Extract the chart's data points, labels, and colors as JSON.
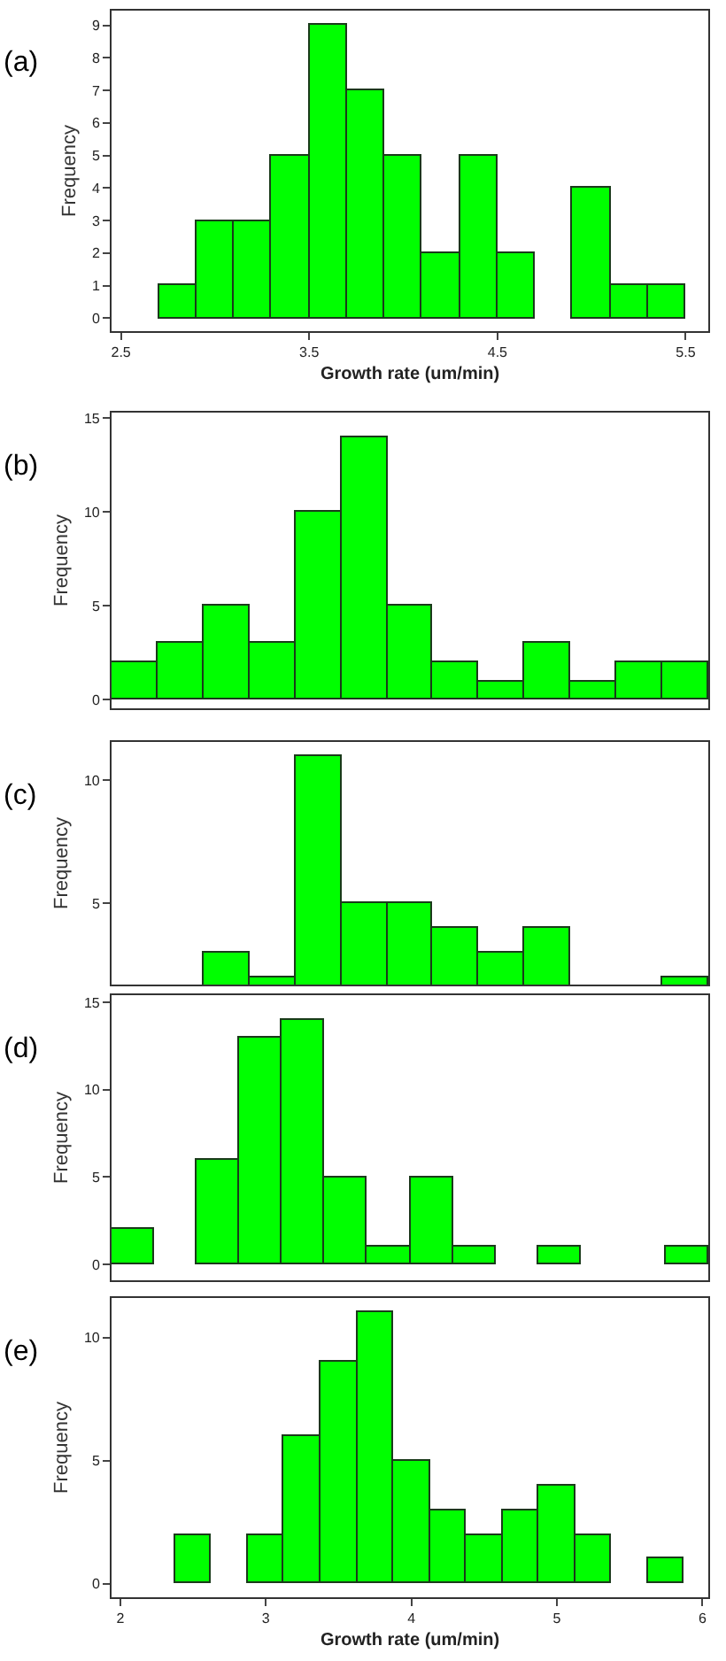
{
  "chart_data": [
    {
      "type": "histogram",
      "xlabel": "Growth rate (um/min)",
      "ylabel": "Frequency",
      "annotations": [
        "(a)"
      ],
      "color": "#00ff00",
      "bins": [
        2.7,
        2.9,
        3.1,
        3.3,
        3.5,
        3.7,
        3.9,
        4.1,
        4.3,
        4.5,
        4.7,
        4.9,
        5.1,
        5.3,
        5.5
      ],
      "values": [
        1,
        3,
        3,
        5,
        9,
        7,
        5,
        2,
        5,
        2,
        0,
        4,
        1,
        1
      ],
      "xlim": [
        2.45,
        5.62
      ],
      "xticks": [
        2.5,
        3.5,
        4.5,
        5.5
      ],
      "ylim": [
        -0.4,
        9.45
      ],
      "yticks": [
        0,
        1,
        2,
        3,
        4,
        5,
        6,
        7,
        8,
        9
      ]
    },
    {
      "type": "bar",
      "ylabel": "Frequency",
      "annotations": [
        "(b)"
      ],
      "color": "#00ff00",
      "categories": [
        null,
        null,
        null,
        null,
        null,
        null,
        null,
        null,
        null,
        null,
        null,
        null,
        null
      ],
      "values": [
        2,
        3,
        5,
        3,
        10,
        14,
        5,
        2,
        1,
        3,
        1,
        2,
        2
      ],
      "ylim": [
        -0.45,
        15.3
      ],
      "yticks": [
        0,
        5,
        10,
        15
      ]
    },
    {
      "type": "bar",
      "ylabel": "Frequency",
      "annotations": [
        "(c)"
      ],
      "color": "#00ff00",
      "categories": [
        null,
        null,
        null,
        null,
        null,
        null,
        null,
        null,
        null,
        null,
        null,
        null,
        null
      ],
      "values": [
        null,
        null,
        3,
        2,
        11,
        5,
        5,
        4,
        3,
        4,
        null,
        null,
        2
      ],
      "ylim": [
        1.7,
        11.55
      ],
      "yticks": [
        5,
        10
      ]
    },
    {
      "type": "bar",
      "ylabel": "Frequency",
      "annotations": [
        "(d)"
      ],
      "color": "#00ff00",
      "categories": [
        null,
        null,
        null,
        null,
        null,
        null,
        null,
        null,
        null,
        null,
        null,
        null,
        null,
        null
      ],
      "values": [
        2,
        0,
        6,
        13,
        14,
        5,
        1,
        5,
        1,
        0,
        1,
        0,
        0,
        1
      ],
      "ylim": [
        -0.9,
        15.4
      ],
      "yticks": [
        0,
        5,
        10,
        15
      ]
    },
    {
      "type": "histogram",
      "xlabel": "Growth rate (um/min)",
      "ylabel": "Frequency",
      "annotations": [
        "(e)"
      ],
      "color": "#00ff00",
      "bins": [
        2.375,
        2.625,
        2.875,
        3.125,
        3.375,
        3.625,
        3.875,
        4.125,
        4.375,
        4.625,
        4.875,
        5.125,
        5.375,
        5.625,
        5.875
      ],
      "values": [
        2,
        0,
        2,
        6,
        9,
        11,
        5,
        3,
        2,
        3,
        4,
        2,
        0,
        1
      ],
      "xlim": [
        1.94,
        6.04
      ],
      "xticks": [
        2,
        3,
        4,
        5,
        6
      ],
      "ylim": [
        -0.55,
        11.6
      ],
      "yticks": [
        0,
        5,
        10
      ]
    }
  ]
}
